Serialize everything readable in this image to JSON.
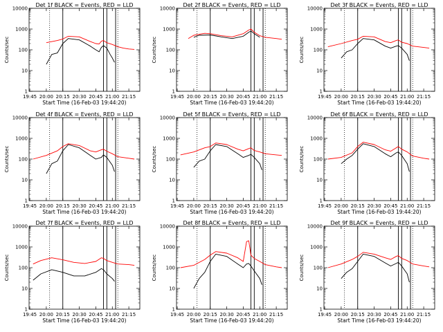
{
  "figure": {
    "xlabel": "Start Time (16-Feb-03 19:44:20)",
    "ylabel": "Counts/sec"
  },
  "chart_data": [
    {
      "type": "line",
      "title": "Det 1f BLACK = Events, RED = LLD",
      "xticks": [
        "19:45",
        "20:00",
        "20:15",
        "20:30",
        "20:45",
        "21:00",
        "21:15"
      ],
      "xlim": [
        "19:44:20",
        "21:25"
      ],
      "yscale": "log",
      "ylim": [
        1,
        10000
      ],
      "yticks": [
        "1",
        "10",
        "100",
        "1000",
        "10000"
      ],
      "dotted_vlines": [
        "20:03",
        "21:05"
      ],
      "solid_vlines": [
        "20:15",
        "20:52",
        "20:55",
        "21:03"
      ],
      "series": [
        {
          "color": "#ff0000",
          "x": [
            "20:00",
            "20:10",
            "20:15",
            "20:20",
            "20:30",
            "20:40",
            "20:45",
            "20:48",
            "20:50",
            "20:52",
            "20:55",
            "21:00",
            "21:05",
            "21:10",
            "21:15",
            "21:20"
          ],
          "y": [
            220,
            280,
            330,
            450,
            420,
            250,
            200,
            190,
            260,
            280,
            220,
            180,
            140,
            120,
            110,
            105
          ]
        },
        {
          "color": "#000000",
          "x": [
            "20:00",
            "20:05",
            "20:10",
            "20:15",
            "20:20",
            "20:30",
            "20:40",
            "20:45",
            "20:48",
            "20:50",
            "20:52",
            "20:55",
            "20:58",
            "21:00",
            "21:02"
          ],
          "y": [
            20,
            60,
            70,
            200,
            350,
            300,
            150,
            100,
            80,
            130,
            160,
            120,
            60,
            40,
            25
          ]
        }
      ]
    },
    {
      "type": "line",
      "title": "Det 2f BLACK = Events, RED = LLD",
      "xticks": [
        "19:45",
        "20:00",
        "20:15",
        "20:30",
        "20:45",
        "21:00",
        "21:15"
      ],
      "xlim": [
        "19:44:20",
        "21:25"
      ],
      "yscale": "log",
      "ylim": [
        1,
        10000
      ],
      "yticks": [
        "1",
        "10",
        "100",
        "1000",
        "10000"
      ],
      "dotted_vlines": [
        "20:03",
        "21:05"
      ],
      "solid_vlines": [
        "20:15",
        "20:52",
        "20:55",
        "21:03"
      ],
      "series": [
        {
          "color": "#ff0000",
          "x": [
            "19:55",
            "20:00",
            "20:10",
            "20:15",
            "20:25",
            "20:35",
            "20:45",
            "20:50",
            "20:52",
            "20:55",
            "21:00",
            "21:05",
            "21:15",
            "21:20"
          ],
          "y": [
            350,
            500,
            620,
            600,
            480,
            420,
            600,
            900,
            1000,
            700,
            480,
            400,
            350,
            320
          ]
        },
        {
          "color": "#000000",
          "x": [
            "20:00",
            "20:05",
            "20:15",
            "20:25",
            "20:35",
            "20:45",
            "20:50",
            "20:52",
            "20:55",
            "21:00"
          ],
          "y": [
            400,
            500,
            520,
            420,
            350,
            450,
            700,
            800,
            600,
            400
          ]
        }
      ]
    },
    {
      "type": "line",
      "title": "Det 3f BLACK = Events, RED = LLD",
      "xticks": [
        "19:45",
        "20:00",
        "20:15",
        "20:30",
        "20:45",
        "21:00",
        "21:15"
      ],
      "xlim": [
        "19:44:20",
        "21:25"
      ],
      "yscale": "log",
      "ylim": [
        1,
        10000
      ],
      "yticks": [
        "1",
        "10",
        "100",
        "1000",
        "10000"
      ],
      "dotted_vlines": [
        "20:03",
        "21:05"
      ],
      "solid_vlines": [
        "20:15",
        "20:52",
        "20:55",
        "21:03"
      ],
      "series": [
        {
          "color": "#ff0000",
          "x": [
            "19:48",
            "20:00",
            "20:10",
            "20:15",
            "20:20",
            "20:30",
            "20:40",
            "20:45",
            "20:50",
            "20:52",
            "20:55",
            "21:00",
            "21:05",
            "21:15",
            "21:20"
          ],
          "y": [
            140,
            200,
            280,
            320,
            450,
            420,
            250,
            220,
            280,
            300,
            230,
            200,
            150,
            130,
            120
          ]
        },
        {
          "color": "#000000",
          "x": [
            "20:00",
            "20:05",
            "20:10",
            "20:15",
            "20:20",
            "20:30",
            "20:40",
            "20:45",
            "20:50",
            "20:52",
            "20:55",
            "21:00",
            "21:02"
          ],
          "y": [
            40,
            80,
            100,
            200,
            350,
            300,
            150,
            120,
            150,
            160,
            120,
            60,
            30
          ]
        }
      ]
    },
    {
      "type": "line",
      "title": "Det 4f BLACK = Events, RED = LLD",
      "xticks": [
        "19:45",
        "20:00",
        "20:15",
        "20:30",
        "20:45",
        "21:00",
        "21:15"
      ],
      "xlim": [
        "19:44:20",
        "21:25"
      ],
      "yscale": "log",
      "ylim": [
        1,
        10000
      ],
      "yticks": [
        "1",
        "10",
        "100",
        "1000",
        "10000"
      ],
      "dotted_vlines": [
        "20:03",
        "21:05"
      ],
      "solid_vlines": [
        "20:15",
        "20:52",
        "20:55",
        "21:03"
      ],
      "series": [
        {
          "color": "#ff0000",
          "x": [
            "19:48",
            "20:00",
            "20:10",
            "20:15",
            "20:20",
            "20:30",
            "20:40",
            "20:45",
            "20:50",
            "20:52",
            "20:55",
            "21:00",
            "21:05",
            "21:15",
            "21:20"
          ],
          "y": [
            100,
            150,
            250,
            400,
            550,
            450,
            250,
            220,
            280,
            300,
            240,
            180,
            130,
            110,
            100
          ]
        },
        {
          "color": "#000000",
          "x": [
            "20:00",
            "20:05",
            "20:10",
            "20:15",
            "20:20",
            "20:30",
            "20:40",
            "20:45",
            "20:50",
            "20:52",
            "20:55",
            "21:00",
            "21:02"
          ],
          "y": [
            20,
            60,
            80,
            250,
            500,
            350,
            150,
            100,
            120,
            160,
            120,
            50,
            25
          ]
        }
      ]
    },
    {
      "type": "line",
      "title": "Det 5f BLACK = Events, RED = LLD",
      "xticks": [
        "19:45",
        "20:00",
        "20:15",
        "20:30",
        "20:45",
        "21:00",
        "21:15"
      ],
      "xlim": [
        "19:44:20",
        "21:25"
      ],
      "yscale": "log",
      "ylim": [
        1,
        10000
      ],
      "yticks": [
        "1",
        "10",
        "100",
        "1000",
        "10000"
      ],
      "dotted_vlines": [
        "20:03",
        "21:05"
      ],
      "solid_vlines": [
        "20:15",
        "20:52",
        "20:55",
        "21:03"
      ],
      "series": [
        {
          "color": "#ff0000",
          "x": [
            "19:48",
            "20:00",
            "20:10",
            "20:15",
            "20:20",
            "20:30",
            "20:40",
            "20:45",
            "20:50",
            "20:52",
            "20:55",
            "21:00",
            "21:05",
            "21:15",
            "21:20"
          ],
          "y": [
            160,
            220,
            350,
            400,
            600,
            500,
            300,
            250,
            320,
            350,
            260,
            220,
            180,
            160,
            150
          ]
        },
        {
          "color": "#000000",
          "x": [
            "20:00",
            "20:05",
            "20:10",
            "20:15",
            "20:20",
            "20:30",
            "20:40",
            "20:45",
            "20:50",
            "20:52",
            "20:55",
            "21:00",
            "21:02"
          ],
          "y": [
            40,
            80,
            100,
            250,
            500,
            400,
            180,
            120,
            150,
            170,
            120,
            60,
            30
          ]
        }
      ]
    },
    {
      "type": "line",
      "title": "Det 6f BLACK = Events, RED = LLD",
      "xticks": [
        "19:45",
        "20:00",
        "20:15",
        "20:30",
        "20:45",
        "21:00",
        "21:15"
      ],
      "xlim": [
        "19:44:20",
        "21:25"
      ],
      "yscale": "log",
      "ylim": [
        1,
        10000
      ],
      "yticks": [
        "1",
        "10",
        "100",
        "1000",
        "10000"
      ],
      "dotted_vlines": [
        "20:03",
        "21:05"
      ],
      "solid_vlines": [
        "20:15",
        "20:52",
        "20:55",
        "21:03"
      ],
      "series": [
        {
          "color": "#ff0000",
          "x": [
            "19:48",
            "20:00",
            "20:10",
            "20:15",
            "20:20",
            "20:30",
            "20:40",
            "20:45",
            "20:50",
            "20:52",
            "20:55",
            "21:00",
            "21:05",
            "21:15",
            "21:20"
          ],
          "y": [
            100,
            120,
            200,
            400,
            650,
            500,
            280,
            240,
            350,
            400,
            300,
            220,
            140,
            110,
            100
          ]
        },
        {
          "color": "#000000",
          "x": [
            "20:00",
            "20:05",
            "20:10",
            "20:15",
            "20:20",
            "20:30",
            "20:40",
            "20:45",
            "20:50",
            "20:52",
            "20:55",
            "21:00",
            "21:02"
          ],
          "y": [
            60,
            100,
            150,
            300,
            550,
            400,
            180,
            130,
            200,
            220,
            150,
            60,
            25
          ]
        }
      ]
    },
    {
      "type": "line",
      "title": "Det 7f BLACK = Events, RED = LLD",
      "xticks": [
        "19:45",
        "20:00",
        "20:15",
        "20:30",
        "20:45",
        "21:00",
        "21:15"
      ],
      "xlim": [
        "19:44:20",
        "21:25"
      ],
      "yscale": "log",
      "ylim": [
        1,
        10000
      ],
      "yticks": [
        "1",
        "10",
        "100",
        "1000",
        "10000"
      ],
      "dotted_vlines": [
        "20:03",
        "21:05"
      ],
      "solid_vlines": [
        "20:15",
        "20:52",
        "20:55",
        "21:03"
      ],
      "series": [
        {
          "color": "#ff0000",
          "x": [
            "19:48",
            "19:55",
            "20:05",
            "20:15",
            "20:25",
            "20:35",
            "20:45",
            "20:50",
            "20:52",
            "20:55",
            "21:00",
            "21:05",
            "21:15",
            "21:20"
          ],
          "y": [
            150,
            220,
            300,
            240,
            180,
            160,
            200,
            300,
            280,
            220,
            180,
            150,
            140,
            130
          ]
        },
        {
          "color": "#000000",
          "x": [
            "19:48",
            "19:55",
            "20:05",
            "20:15",
            "20:25",
            "20:35",
            "20:45",
            "20:50",
            "20:52",
            "20:55",
            "21:00",
            "21:02"
          ],
          "y": [
            25,
            50,
            80,
            60,
            40,
            40,
            60,
            90,
            80,
            50,
            30,
            22
          ]
        }
      ]
    },
    {
      "type": "line",
      "title": "Det 8f BLACK = Events, RED = LLD",
      "xticks": [
        "19:45",
        "20:00",
        "20:15",
        "20:30",
        "20:45",
        "21:00",
        "21:15"
      ],
      "xlim": [
        "19:44:20",
        "21:25"
      ],
      "yscale": "log",
      "ylim": [
        1,
        10000
      ],
      "yticks": [
        "1",
        "10",
        "100",
        "1000",
        "10000"
      ],
      "dotted_vlines": [
        "20:03",
        "21:05"
      ],
      "solid_vlines": [
        "20:15",
        "20:52",
        "20:55",
        "21:03"
      ],
      "series": [
        {
          "color": "#ff0000",
          "x": [
            "19:48",
            "20:00",
            "20:10",
            "20:15",
            "20:20",
            "20:30",
            "20:40",
            "20:45",
            "20:48",
            "20:50",
            "20:52",
            "20:55",
            "21:00",
            "21:05",
            "21:15",
            "21:20"
          ],
          "y": [
            100,
            130,
            250,
            400,
            600,
            500,
            300,
            200,
            1800,
            2000,
            400,
            280,
            200,
            140,
            110,
            100
          ]
        },
        {
          "color": "#000000",
          "x": [
            "20:00",
            "20:05",
            "20:10",
            "20:15",
            "20:20",
            "20:30",
            "20:40",
            "20:45",
            "20:48",
            "20:50",
            "20:52",
            "20:55",
            "21:00",
            "21:02"
          ],
          "y": [
            10,
            30,
            60,
            200,
            450,
            350,
            150,
            100,
            150,
            160,
            120,
            70,
            30,
            15
          ]
        }
      ]
    },
    {
      "type": "line",
      "title": "Det 9f BLACK = Events, RED = LLD",
      "xticks": [
        "19:45",
        "20:00",
        "20:15",
        "20:30",
        "20:45",
        "21:00",
        "21:15"
      ],
      "xlim": [
        "19:44:20",
        "21:25"
      ],
      "yscale": "log",
      "ylim": [
        1,
        10000
      ],
      "yticks": [
        "1",
        "10",
        "100",
        "1000",
        "10000"
      ],
      "dotted_vlines": [
        "20:03",
        "21:05"
      ],
      "solid_vlines": [
        "20:15",
        "20:52",
        "20:55",
        "21:03"
      ],
      "series": [
        {
          "color": "#ff0000",
          "x": [
            "19:48",
            "20:00",
            "20:10",
            "20:15",
            "20:20",
            "20:30",
            "20:40",
            "20:45",
            "20:50",
            "20:52",
            "20:55",
            "21:00",
            "21:05",
            "21:15",
            "21:20"
          ],
          "y": [
            100,
            150,
            250,
            350,
            550,
            450,
            300,
            250,
            350,
            380,
            280,
            220,
            150,
            120,
            110
          ]
        },
        {
          "color": "#000000",
          "x": [
            "20:00",
            "20:05",
            "20:10",
            "20:15",
            "20:20",
            "20:30",
            "20:40",
            "20:45",
            "20:50",
            "20:52",
            "20:55",
            "21:00",
            "21:02"
          ],
          "y": [
            30,
            60,
            90,
            200,
            450,
            350,
            170,
            120,
            160,
            180,
            120,
            50,
            20
          ]
        }
      ]
    }
  ]
}
